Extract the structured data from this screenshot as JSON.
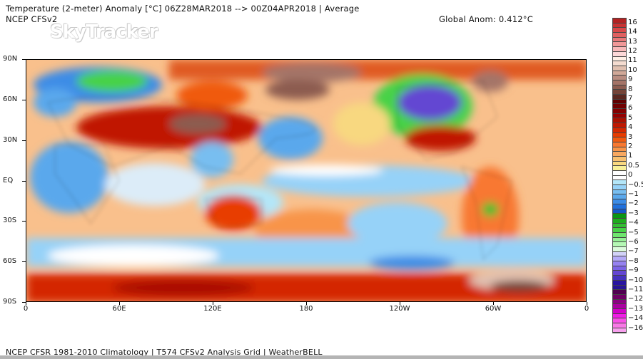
{
  "header": {
    "title": "Temperature (2-meter) Anomaly  [°C] 06Z28MAR2018 --> 00Z04APR2018 | Average",
    "model": "NCEP CFSv2",
    "global_anomaly": "Global Anom: 0.412°C",
    "watermark": "SkyTracker"
  },
  "map": {
    "projection": "equirectangular",
    "lat_labels": [
      "90N",
      "60N",
      "30N",
      "EQ",
      "30S",
      "60S",
      "90S"
    ],
    "lon_labels": [
      "0",
      "60E",
      "120E",
      "180",
      "120W",
      "60W",
      "0"
    ]
  },
  "colorbar": {
    "labels": [
      "16",
      "14",
      "13",
      "12",
      "11",
      "10",
      "9",
      "8",
      "7",
      "6",
      "5",
      "4",
      "3",
      "2",
      "1",
      "0.5",
      "0",
      "−0.5",
      "−1",
      "−2",
      "−3",
      "−4",
      "−5",
      "−6",
      "−7",
      "−8",
      "−9",
      "−10",
      "−11",
      "−12",
      "−13",
      "−14",
      "−16"
    ],
    "bands": [
      "#b22222",
      "#c83232",
      "#d84848",
      "#e06060",
      "#e87878",
      "#f09898",
      "#f8b8b8",
      "#fcd8d8",
      "#fff0e6",
      "#f4dcd0",
      "#e0c0b0",
      "#d0a898",
      "#b88c80",
      "#a47468",
      "#8c5c50",
      "#744438",
      "#5a2820",
      "#600000",
      "#700000",
      "#820000",
      "#960000",
      "#aa1000",
      "#c01800",
      "#d42800",
      "#e83c00",
      "#f05a10",
      "#f87830",
      "#f89448",
      "#f8a860",
      "#f8c070",
      "#f8d880",
      "#f8f098",
      "#ffffff",
      "#ffffff",
      "#b4e6f8",
      "#96d2f8",
      "#78bef0",
      "#5aa8ec",
      "#3c8ce6",
      "#2070dc",
      "#1458c8",
      "#0a9614",
      "#1eaa1e",
      "#32be32",
      "#46d246",
      "#6ee66e",
      "#96f096",
      "#b4f8b4",
      "#dcfadc",
      "#d2d2f8",
      "#b4aaf8",
      "#9682f0",
      "#7c64e6",
      "#6446d2",
      "#4632be",
      "#2814a0",
      "#281496",
      "#500050",
      "#6e0064",
      "#8c0082",
      "#aa00a0",
      "#d200c8",
      "#f01ee6",
      "#f850e6",
      "#f878e6",
      "#f8a0ee"
    ]
  },
  "footer": "NCEP CFSR 1981-2010 Climatology | T574 CFSv2 Analysis Grid | WeatherBELL"
}
